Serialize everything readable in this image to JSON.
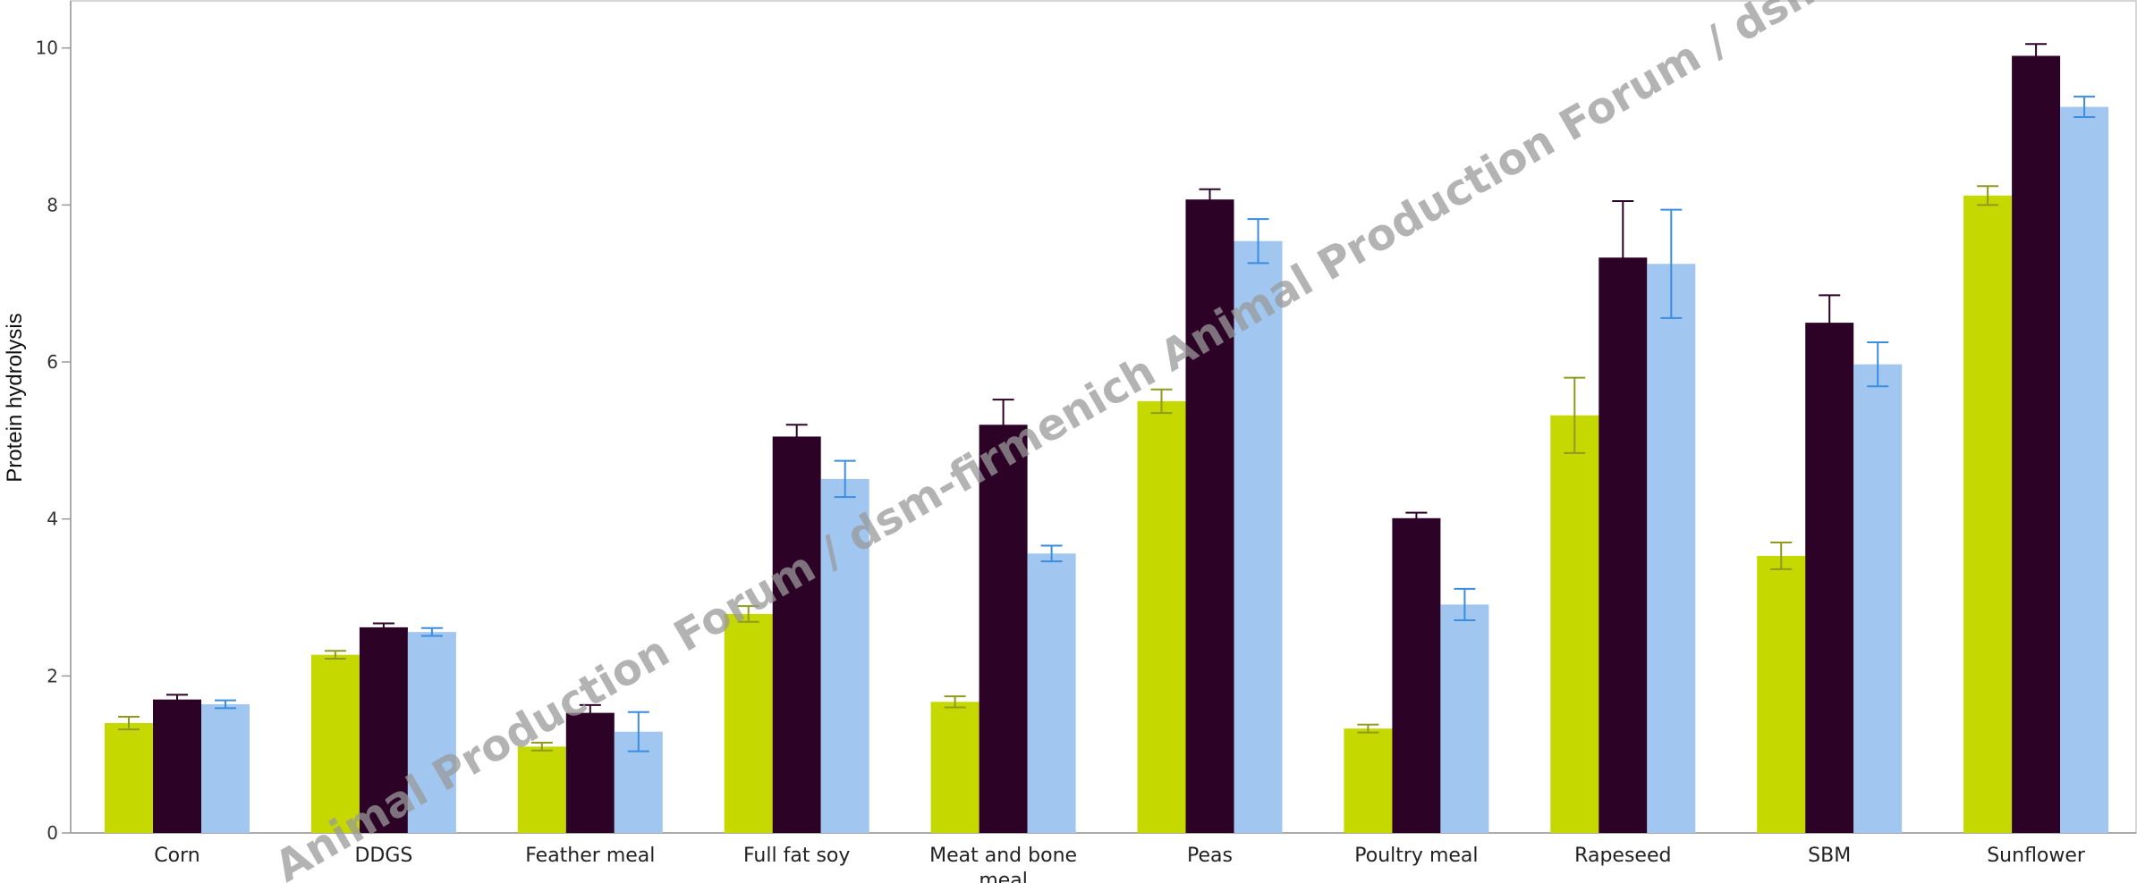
{
  "chart_data": {
    "type": "bar",
    "title": "",
    "xlabel": "",
    "ylabel": "Protein hydrolysis",
    "ylim": [
      0,
      10.6
    ],
    "yticks": [
      0,
      2,
      4,
      6,
      8,
      10
    ],
    "grid": false,
    "legend": "none",
    "categories": [
      "Corn",
      "DDGS",
      "Feather meal",
      "Full fat soy",
      "Meat and bone meal",
      "Peas",
      "Poultry meal",
      "Rapeseed",
      "SBM",
      "Sunflower"
    ],
    "series": [
      {
        "color": "#c5d900",
        "error_color": "#8f9a1e",
        "values": [
          1.4,
          2.27,
          1.1,
          2.79,
          1.67,
          5.5,
          1.33,
          5.32,
          3.53,
          8.12
        ],
        "errors": [
          0.08,
          0.05,
          0.05,
          0.1,
          0.07,
          0.15,
          0.05,
          0.48,
          0.17,
          0.12
        ]
      },
      {
        "color": "#2d0227",
        "error_color": "#2d0227",
        "values": [
          1.7,
          2.62,
          1.53,
          5.05,
          5.2,
          8.07,
          4.01,
          7.33,
          6.5,
          9.9
        ],
        "errors": [
          0.06,
          0.05,
          0.1,
          0.15,
          0.32,
          0.13,
          0.07,
          0.72,
          0.35,
          0.15
        ]
      },
      {
        "color": "#a1c6ef",
        "error_color": "#3a8de0",
        "values": [
          1.64,
          2.56,
          1.29,
          4.51,
          3.56,
          7.54,
          2.91,
          7.25,
          5.97,
          9.25
        ],
        "errors": [
          0.05,
          0.05,
          0.25,
          0.23,
          0.1,
          0.28,
          0.2,
          0.69,
          0.28,
          0.13
        ]
      }
    ]
  },
  "watermark": {
    "text": "Animal Production Forum / dsm-firmenich Animal Production Forum / dsm-firmenich Animal Production Forum"
  }
}
